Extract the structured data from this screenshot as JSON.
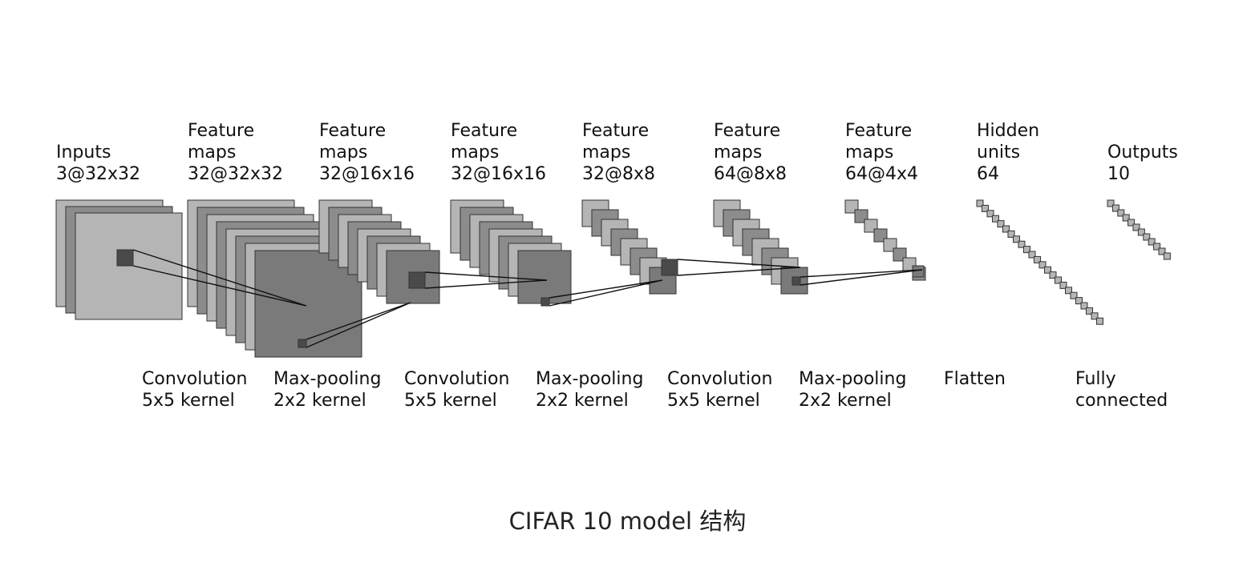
{
  "layers": [
    {
      "id": "inputs",
      "lines": [
        "Inputs",
        "3@32x32"
      ]
    },
    {
      "id": "fmap-1",
      "lines": [
        "Feature",
        "maps",
        "32@32x32"
      ]
    },
    {
      "id": "fmap-2",
      "lines": [
        "Feature",
        "maps",
        "32@16x16"
      ]
    },
    {
      "id": "fmap-3",
      "lines": [
        "Feature",
        "maps",
        "32@16x16"
      ]
    },
    {
      "id": "fmap-4",
      "lines": [
        "Feature",
        "maps",
        "32@8x8"
      ]
    },
    {
      "id": "fmap-5",
      "lines": [
        "Feature",
        "maps",
        "64@8x8"
      ]
    },
    {
      "id": "fmap-6",
      "lines": [
        "Feature",
        "maps",
        "64@4x4"
      ]
    },
    {
      "id": "hidden",
      "lines": [
        "Hidden",
        "units",
        "64"
      ]
    },
    {
      "id": "outputs",
      "lines": [
        "Outputs",
        "10"
      ]
    }
  ],
  "operations": [
    {
      "id": "conv-1",
      "lines": [
        "Convolution",
        "5x5 kernel"
      ]
    },
    {
      "id": "pool-1",
      "lines": [
        "Max-pooling",
        "2x2 kernel"
      ]
    },
    {
      "id": "conv-2",
      "lines": [
        "Convolution",
        "5x5 kernel"
      ]
    },
    {
      "id": "pool-2",
      "lines": [
        "Max-pooling",
        "2x2 kernel"
      ]
    },
    {
      "id": "conv-3",
      "lines": [
        "Convolution",
        "5x5 kernel"
      ]
    },
    {
      "id": "pool-3",
      "lines": [
        "Max-pooling",
        "2x2 kernel"
      ]
    },
    {
      "id": "flatten",
      "lines": [
        "Flatten"
      ]
    },
    {
      "id": "fc",
      "lines": [
        "Fully",
        "connected"
      ]
    }
  ],
  "caption": "CIFAR 10 model 结构",
  "colors": {
    "light": "#b5b5b5",
    "mid": "#8c8c8c",
    "dark": "#7a7a7a",
    "patch": "#4a4a4a",
    "stroke": "#333333"
  }
}
